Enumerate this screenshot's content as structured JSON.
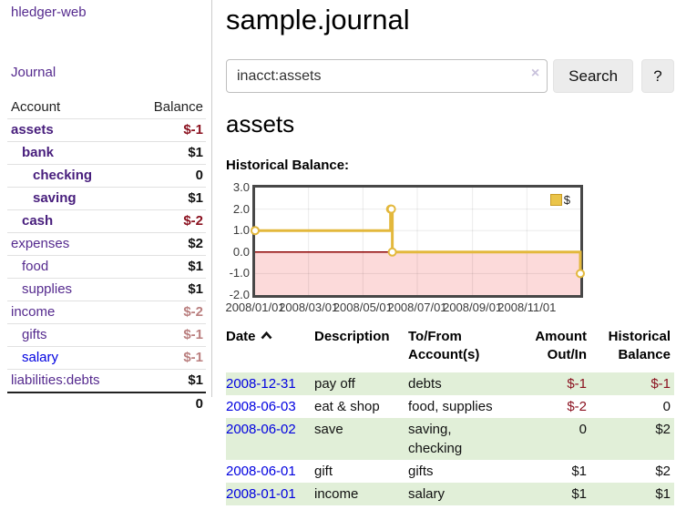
{
  "colors": {
    "purple": "#552a8e",
    "purple_dark": "#471d7c",
    "blue": "#0000e0",
    "neg_strong": "#8b1220",
    "neg_muted": "#ba7f7f",
    "stripe": "#e1efd8"
  },
  "sidebar": {
    "app_title": "hledger-web",
    "nav": {
      "journal_label": "Journal"
    },
    "accounts_table": {
      "headers": {
        "account": "Account",
        "balance": "Balance"
      },
      "rows": [
        {
          "name": "assets",
          "indent": 0,
          "bold": true,
          "blue": false,
          "balance": "$-1",
          "neg": "neg-strong"
        },
        {
          "name": "bank",
          "indent": 1,
          "bold": true,
          "blue": false,
          "balance": "$1",
          "neg": ""
        },
        {
          "name": "checking",
          "indent": 2,
          "bold": true,
          "blue": false,
          "balance": "0",
          "neg": ""
        },
        {
          "name": "saving",
          "indent": 2,
          "bold": true,
          "blue": false,
          "balance": "$1",
          "neg": ""
        },
        {
          "name": "cash",
          "indent": 1,
          "bold": true,
          "blue": false,
          "balance": "$-2",
          "neg": "neg-strong"
        },
        {
          "name": "expenses",
          "indent": 0,
          "bold": false,
          "blue": false,
          "balance": "$2",
          "neg": ""
        },
        {
          "name": "food",
          "indent": 1,
          "bold": false,
          "blue": false,
          "balance": "$1",
          "neg": ""
        },
        {
          "name": "supplies",
          "indent": 1,
          "bold": false,
          "blue": false,
          "balance": "$1",
          "neg": ""
        },
        {
          "name": "income",
          "indent": 0,
          "bold": false,
          "blue": false,
          "balance": "$-2",
          "neg": "neg-muted"
        },
        {
          "name": "gifts",
          "indent": 1,
          "bold": false,
          "blue": false,
          "balance": "$-1",
          "neg": "neg-muted"
        },
        {
          "name": "salary",
          "indent": 1,
          "bold": false,
          "blue": true,
          "balance": "$-1",
          "neg": "neg-muted"
        },
        {
          "name": "liabilities:debts",
          "indent": 0,
          "bold": false,
          "blue": false,
          "balance": "$1",
          "neg": ""
        }
      ],
      "total": "0"
    }
  },
  "main": {
    "title": "sample.journal",
    "search": {
      "query": "inacct:assets",
      "clear_icon": "×",
      "button_label": "Search",
      "help_label": "?"
    },
    "account_heading": "assets",
    "chart_label": "Historical Balance:"
  },
  "chart_data": {
    "type": "line",
    "mode": "steps",
    "title": "Historical Balance",
    "legend": "$",
    "legend_position": "top-right",
    "grid": true,
    "x_range": [
      "2008-01-01",
      "2008-12-31"
    ],
    "ylim": [
      -2,
      3
    ],
    "y_ticks": [
      "3.0",
      "2.0",
      "1.0",
      "0.0",
      "-1.0",
      "-2.0"
    ],
    "x_ticks": [
      "2008/01/01",
      "2008/03/01",
      "2008/05/01",
      "2008/07/01",
      "2008/09/01",
      "2008/11/01"
    ],
    "series": [
      {
        "name": "$",
        "color": "#e3b83c",
        "points": [
          [
            "2008-01-01",
            1
          ],
          [
            "2008-06-01",
            2
          ],
          [
            "2008-06-02",
            2
          ],
          [
            "2008-06-03",
            0
          ],
          [
            "2008-12-31",
            -1
          ]
        ]
      }
    ],
    "legend_swatch": {
      "fill": "#eac449",
      "border": "#c89b25"
    },
    "negative_region_color": "#fcdada",
    "zero_line_color": "#8b0000"
  },
  "register_table": {
    "headers": {
      "date": "Date",
      "sort": "asc",
      "description": "Description",
      "tofrom_line1": "To/From",
      "tofrom_line2": "Account(s)",
      "amount_line1": "Amount",
      "amount_line2": "Out/In",
      "balance_line1": "Historical",
      "balance_line2": "Balance"
    },
    "rows": [
      {
        "date": "2008-12-31",
        "description": "pay off",
        "accounts": "debts",
        "amount": "$-1",
        "amount_neg": true,
        "balance": "$-1",
        "balance_neg": true,
        "stripe": true
      },
      {
        "date": "2008-06-03",
        "description": "eat & shop",
        "accounts": "food, supplies",
        "amount": "$-2",
        "amount_neg": true,
        "balance": "0",
        "balance_neg": false,
        "stripe": false
      },
      {
        "date": "2008-06-02",
        "description": "save",
        "accounts": "saving, checking",
        "amount": "0",
        "amount_neg": false,
        "balance": "$2",
        "balance_neg": false,
        "stripe": true
      },
      {
        "date": "2008-06-01",
        "description": "gift",
        "accounts": "gifts",
        "amount": "$1",
        "amount_neg": false,
        "balance": "$2",
        "balance_neg": false,
        "stripe": false
      },
      {
        "date": "2008-01-01",
        "description": "income",
        "accounts": "salary",
        "amount": "$1",
        "amount_neg": false,
        "balance": "$1",
        "balance_neg": false,
        "stripe": true
      }
    ]
  }
}
